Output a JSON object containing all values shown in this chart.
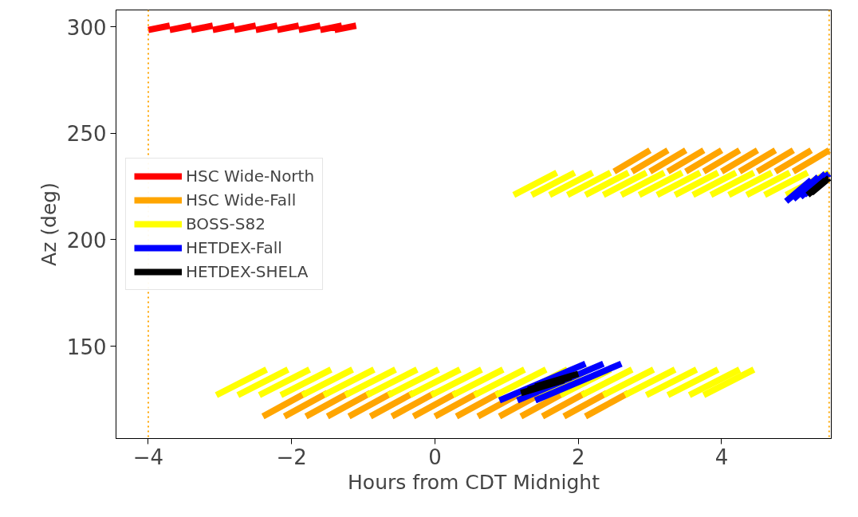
{
  "chart_data": {
    "type": "line",
    "xlabel": "Hours from CDT Midnight",
    "ylabel": "Az (deg)",
    "xlim": [
      -4.45,
      5.53
    ],
    "ylim": [
      106.6,
      307.9
    ],
    "xticks": [
      {
        "value": -4,
        "label": "−4"
      },
      {
        "value": -2,
        "label": "−2"
      },
      0,
      2,
      4
    ],
    "yticks": [
      150,
      200,
      250,
      300
    ],
    "grid": false,
    "legend": "center left",
    "line_style": "solid",
    "marker": "none",
    "ref_lines": [
      {
        "axis": "x",
        "value": -4,
        "label": null,
        "color": "#ffa500",
        "line_style": "dotted"
      },
      {
        "axis": "x",
        "value": 5.5,
        "label": null,
        "color": "#ffa500",
        "line_style": "dotted"
      }
    ],
    "series": [
      {
        "name": "HSC Wide-North",
        "color": "#ff0000",
        "x": [
          -4.0,
          -3.7,
          null,
          -3.7,
          -3.4,
          null,
          -3.4,
          -3.1,
          null,
          -3.1,
          -2.8,
          null,
          -2.8,
          -2.5,
          null,
          -2.5,
          -2.2,
          null,
          -2.2,
          -1.9,
          null,
          -1.9,
          -1.6,
          null,
          -1.6,
          -1.3,
          null,
          -1.4,
          -1.1
        ],
        "values": [
          298.5,
          300.5,
          null,
          298.5,
          300.5,
          null,
          298.5,
          300.5,
          null,
          298.5,
          300.5,
          null,
          298.5,
          300.5,
          null,
          298.5,
          300.5,
          null,
          298.5,
          300.5,
          null,
          298.5,
          300.5,
          null,
          298.5,
          300.5,
          null,
          298.5,
          300.5
        ]
      },
      {
        "name": "HSC Wide-Fall",
        "color": "#ffa500",
        "x": [
          -2.4,
          -1.8,
          null,
          -2.1,
          -1.5,
          null,
          -1.8,
          -1.2,
          null,
          -1.5,
          -0.9,
          null,
          -1.2,
          -0.6,
          null,
          -0.9,
          -0.3,
          null,
          -0.6,
          0.0,
          null,
          -0.3,
          0.3,
          null,
          0.0,
          0.6,
          null,
          0.3,
          0.9,
          null,
          0.6,
          1.2,
          null,
          0.9,
          1.5,
          null,
          1.2,
          1.8,
          null,
          1.5,
          2.1,
          null,
          1.8,
          2.4,
          null,
          2.1,
          2.7,
          null,
          2.5,
          3.0,
          null,
          2.75,
          3.25,
          null,
          3.0,
          3.5,
          null,
          3.25,
          3.75,
          null,
          3.5,
          4.0,
          null,
          3.75,
          4.25,
          null,
          4.0,
          4.5,
          null,
          4.25,
          4.75,
          null,
          4.5,
          5.0,
          null,
          4.75,
          5.25,
          null,
          5.0,
          5.5
        ],
        "values": [
          117,
          128,
          null,
          117,
          128,
          null,
          117,
          128,
          null,
          117,
          128,
          null,
          117,
          128,
          null,
          117,
          128,
          null,
          117,
          128,
          null,
          117,
          128,
          null,
          117,
          128,
          null,
          117,
          128,
          null,
          117,
          128,
          null,
          117,
          128,
          null,
          117,
          128,
          null,
          117,
          128,
          null,
          117,
          128,
          null,
          117,
          128,
          null,
          232,
          242,
          null,
          232,
          242,
          null,
          232,
          242,
          null,
          232,
          242,
          null,
          232,
          242,
          null,
          232,
          242,
          null,
          232,
          242,
          null,
          232,
          242,
          null,
          232,
          242,
          null,
          232,
          242,
          null,
          232,
          242
        ]
      },
      {
        "name": "BOSS-S82",
        "color": "#ffff00",
        "x": [
          -3.05,
          -2.35,
          null,
          -2.75,
          -2.05,
          null,
          -2.45,
          -1.75,
          null,
          -2.15,
          -1.45,
          null,
          -1.85,
          -1.15,
          null,
          -1.55,
          -0.85,
          null,
          -1.25,
          -0.55,
          null,
          -0.95,
          -0.25,
          null,
          -0.65,
          0.05,
          null,
          -0.35,
          0.35,
          null,
          -0.05,
          0.65,
          null,
          0.25,
          0.95,
          null,
          0.55,
          1.25,
          null,
          0.85,
          1.55,
          null,
          1.15,
          1.85,
          null,
          1.45,
          2.15,
          null,
          1.75,
          2.45,
          null,
          2.05,
          2.75,
          null,
          2.35,
          3.05,
          null,
          2.65,
          3.35,
          null,
          2.95,
          3.65,
          null,
          3.25,
          3.95,
          null,
          3.55,
          4.25,
          null,
          3.75,
          4.45,
          null,
          1.1,
          1.7,
          null,
          1.35,
          1.95,
          null,
          1.6,
          2.2,
          null,
          1.85,
          2.45,
          null,
          2.1,
          2.7,
          null,
          2.35,
          2.95,
          null,
          2.6,
          3.2,
          null,
          2.85,
          3.45,
          null,
          3.1,
          3.7,
          null,
          3.35,
          3.95,
          null,
          3.6,
          4.2,
          null,
          3.85,
          4.45,
          null,
          4.1,
          4.7,
          null,
          4.35,
          4.95,
          null,
          4.6,
          5.2,
          null,
          4.9,
          5.5
        ],
        "values": [
          127,
          139,
          null,
          127,
          139,
          null,
          127,
          139,
          null,
          127,
          139,
          null,
          127,
          139,
          null,
          127,
          139,
          null,
          127,
          139,
          null,
          127,
          139,
          null,
          127,
          139,
          null,
          127,
          139,
          null,
          127,
          139,
          null,
          127,
          139,
          null,
          127,
          139,
          null,
          127,
          139,
          null,
          127,
          139,
          null,
          127,
          139,
          null,
          127,
          139,
          null,
          127,
          139,
          null,
          127,
          139,
          null,
          127,
          139,
          null,
          127,
          139,
          null,
          127,
          139,
          null,
          127,
          139,
          null,
          127,
          139,
          null,
          221,
          231.5,
          null,
          221,
          231.5,
          null,
          221,
          231.5,
          null,
          221,
          231.5,
          null,
          221,
          231.5,
          null,
          221,
          231.5,
          null,
          221,
          231.5,
          null,
          221,
          231.5,
          null,
          221,
          231.5,
          null,
          221,
          231.5,
          null,
          221,
          231.5,
          null,
          221,
          231.5,
          null,
          221,
          231.5,
          null,
          221,
          231.5,
          null,
          221,
          231.5,
          null,
          221,
          231.5
        ]
      },
      {
        "name": "HETDEX-Fall",
        "color": "#0000ff",
        "x": [
          0.9,
          2.1,
          null,
          1.15,
          2.35,
          null,
          1.4,
          2.6,
          null,
          4.9,
          5.25,
          null,
          5.0,
          5.35,
          null,
          5.1,
          5.45,
          null,
          5.15,
          5.5
        ],
        "values": [
          124.5,
          141.75,
          null,
          124.5,
          141.75,
          null,
          124.5,
          141.75,
          null,
          218,
          228,
          null,
          219,
          229.5,
          null,
          220,
          231,
          null,
          221,
          231
        ]
      },
      {
        "name": "HETDEX-SHELA",
        "color": "#000000",
        "x": [
          1.2,
          1.8,
          null,
          1.3,
          1.9,
          null,
          1.4,
          2.0,
          null,
          5.2,
          5.45,
          null,
          5.25,
          5.5
        ],
        "values": [
          128,
          134,
          null,
          129.5,
          135.5,
          null,
          131,
          137,
          null,
          221,
          228,
          null,
          222,
          229
        ]
      }
    ]
  }
}
